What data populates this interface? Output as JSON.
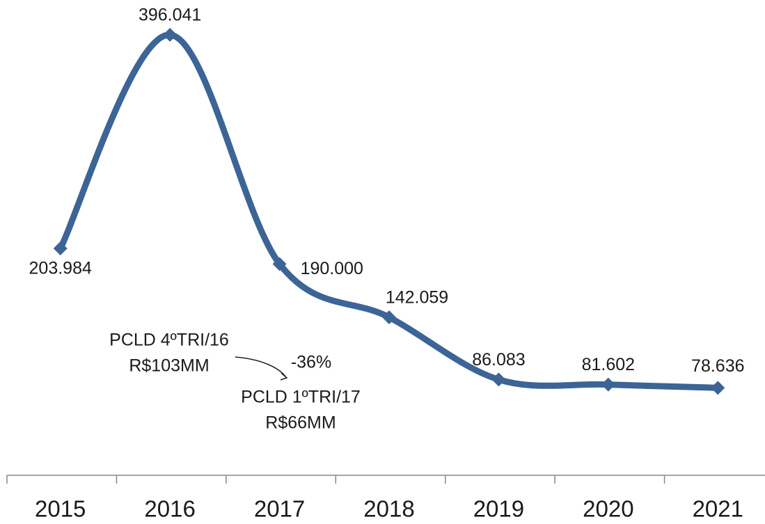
{
  "chart_data": {
    "type": "line",
    "categories": [
      "2015",
      "2016",
      "2017",
      "2018",
      "2019",
      "2020",
      "2021"
    ],
    "values": [
      203984,
      396041,
      190000,
      142059,
      86083,
      81602,
      78636
    ],
    "value_labels": [
      "203.984",
      "396.041",
      "190.000",
      "142.059",
      "86.083",
      "81.602",
      "78.636"
    ],
    "color": "#3c6496",
    "annotations": [
      "PCLD 4ºTRI/16",
      "R$103MM",
      "-36%",
      "PCLD 1ºTRI/17",
      "R$66MM"
    ]
  }
}
